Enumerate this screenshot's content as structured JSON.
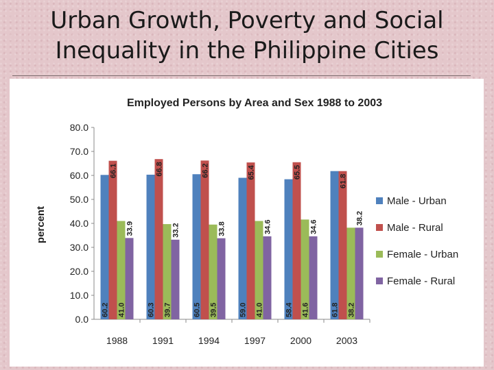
{
  "slide": {
    "title_line1": "Urban Growth, Poverty and Social",
    "title_line2": "Inequality in the Philippine Cities"
  },
  "chart_data": {
    "type": "bar",
    "title": "Employed Persons by Area and Sex 1988 to 2003",
    "xlabel": "",
    "ylabel": "percent",
    "ylim": [
      0,
      80
    ],
    "yticks": [
      "0.0",
      "10.0",
      "20.0",
      "30.0",
      "40.0",
      "50.0",
      "60.0",
      "70.0",
      "80.0"
    ],
    "categories": [
      "1988",
      "1991",
      "1994",
      "1997",
      "2000",
      "2003"
    ],
    "legend_position": "right",
    "grid": false,
    "series": [
      {
        "name": "Male - Urban",
        "color": "#4f81bd",
        "values": [
          60.2,
          60.3,
          60.5,
          59.0,
          58.4,
          61.8
        ]
      },
      {
        "name": "Male - Rural",
        "color": "#c0504d",
        "values": [
          66.1,
          66.8,
          66.2,
          65.4,
          65.5,
          61.8
        ]
      },
      {
        "name": "Female - Urban",
        "color": "#9bbb59",
        "values": [
          41.0,
          39.7,
          39.5,
          41.0,
          41.6,
          38.2
        ]
      },
      {
        "name": "Female - Rural",
        "color": "#8064a2",
        "values": [
          33.9,
          33.2,
          33.8,
          34.6,
          34.6,
          38.2
        ]
      }
    ]
  }
}
